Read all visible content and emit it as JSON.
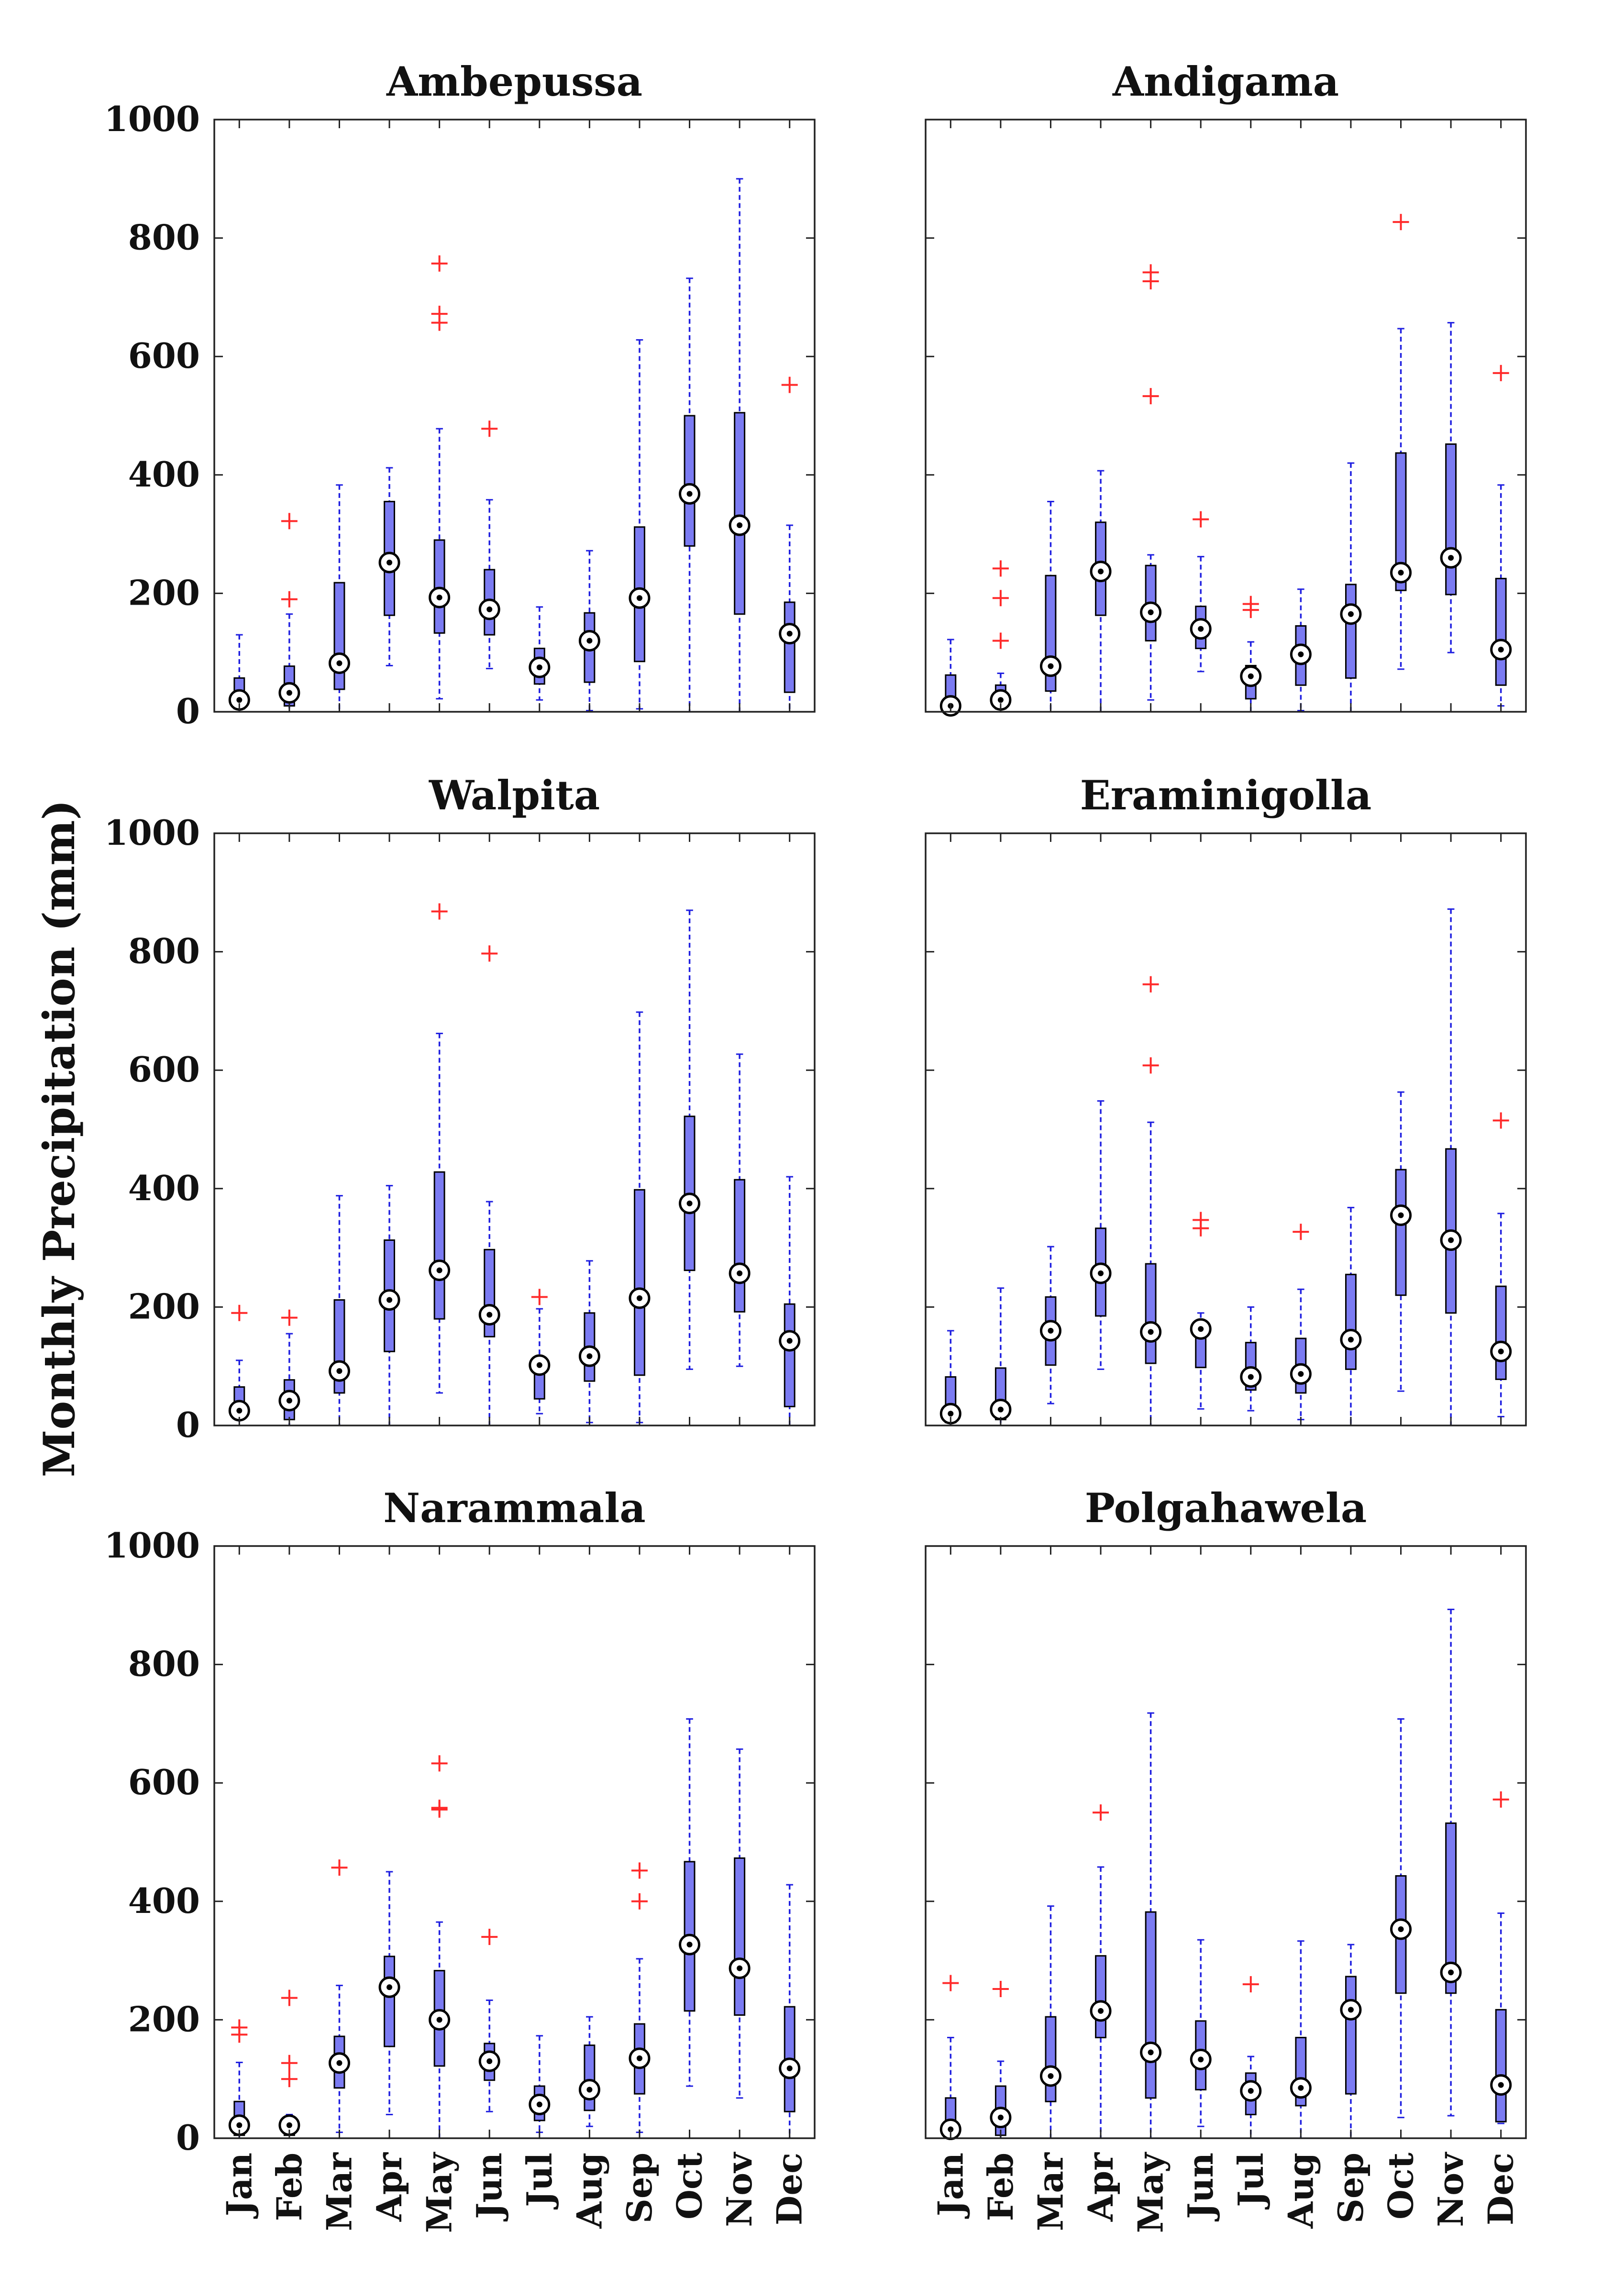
{
  "figure": {
    "ylabel": "Monthly Precipitation (mm)",
    "months": [
      "Jan",
      "Feb",
      "Mar",
      "Apr",
      "May",
      "Jun",
      "Jul",
      "Aug",
      "Sep",
      "Oct",
      "Nov",
      "Dec"
    ],
    "yticks": [
      "0",
      "200",
      "400",
      "600",
      "800",
      "1000"
    ]
  },
  "colors": {
    "box": "#7b7bf2",
    "box_edge": "#000000",
    "whisker": "#1f1fe0",
    "outlier": "#ff2a2a",
    "median_ring": "#000000"
  },
  "chart_data": [
    {
      "type": "box",
      "title": "Ambepussa",
      "categories": [
        "Jan",
        "Feb",
        "Mar",
        "Apr",
        "May",
        "Jun",
        "Jul",
        "Aug",
        "Sep",
        "Oct",
        "Nov",
        "Dec"
      ],
      "ylim": [
        0,
        1000
      ],
      "ylabel": "Monthly Precipitation (mm)",
      "boxes": [
        {
          "min": 0,
          "q1": 5,
          "median": 20,
          "q3": 57,
          "max": 130,
          "outliers": []
        },
        {
          "min": 0,
          "q1": 10,
          "median": 32,
          "q3": 77,
          "max": 165,
          "outliers": [
            190,
            322
          ]
        },
        {
          "min": 0,
          "q1": 38,
          "median": 82,
          "q3": 218,
          "max": 383,
          "outliers": []
        },
        {
          "min": 78,
          "q1": 163,
          "median": 252,
          "q3": 355,
          "max": 412,
          "outliers": []
        },
        {
          "min": 22,
          "q1": 133,
          "median": 193,
          "q3": 290,
          "max": 478,
          "outliers": [
            657,
            672,
            757
          ]
        },
        {
          "min": 73,
          "q1": 130,
          "median": 173,
          "q3": 240,
          "max": 358,
          "outliers": [
            478
          ]
        },
        {
          "min": 20,
          "q1": 47,
          "median": 75,
          "q3": 107,
          "max": 177,
          "outliers": []
        },
        {
          "min": 2,
          "q1": 50,
          "median": 120,
          "q3": 167,
          "max": 272,
          "outliers": []
        },
        {
          "min": 5,
          "q1": 85,
          "median": 192,
          "q3": 312,
          "max": 628,
          "outliers": []
        },
        {
          "min": 0,
          "q1": 280,
          "median": 368,
          "q3": 500,
          "max": 732,
          "outliers": []
        },
        {
          "min": 0,
          "q1": 165,
          "median": 315,
          "q3": 505,
          "max": 900,
          "outliers": []
        },
        {
          "min": 0,
          "q1": 33,
          "median": 132,
          "q3": 185,
          "max": 315,
          "outliers": [
            552
          ]
        }
      ]
    },
    {
      "type": "box",
      "title": "Andigama",
      "categories": [
        "Jan",
        "Feb",
        "Mar",
        "Apr",
        "May",
        "Jun",
        "Jul",
        "Aug",
        "Sep",
        "Oct",
        "Nov",
        "Dec"
      ],
      "ylim": [
        0,
        1000
      ],
      "boxes": [
        {
          "min": 0,
          "q1": 2,
          "median": 10,
          "q3": 62,
          "max": 122,
          "outliers": []
        },
        {
          "min": 0,
          "q1": 5,
          "median": 20,
          "q3": 45,
          "max": 65,
          "outliers": [
            120,
            192,
            242
          ]
        },
        {
          "min": 0,
          "q1": 35,
          "median": 77,
          "q3": 230,
          "max": 355,
          "outliers": []
        },
        {
          "min": 0,
          "q1": 163,
          "median": 237,
          "q3": 320,
          "max": 407,
          "outliers": []
        },
        {
          "min": 20,
          "q1": 120,
          "median": 168,
          "q3": 247,
          "max": 265,
          "outliers": [
            533,
            727,
            742
          ]
        },
        {
          "min": 68,
          "q1": 107,
          "median": 140,
          "q3": 178,
          "max": 262,
          "outliers": [
            325
          ]
        },
        {
          "min": 0,
          "q1": 22,
          "median": 60,
          "q3": 78,
          "max": 118,
          "outliers": [
            172,
            182
          ]
        },
        {
          "min": 2,
          "q1": 45,
          "median": 97,
          "q3": 145,
          "max": 207,
          "outliers": []
        },
        {
          "min": 0,
          "q1": 57,
          "median": 165,
          "q3": 215,
          "max": 420,
          "outliers": []
        },
        {
          "min": 72,
          "q1": 205,
          "median": 235,
          "q3": 437,
          "max": 647,
          "outliers": [
            827
          ]
        },
        {
          "min": 100,
          "q1": 198,
          "median": 260,
          "q3": 452,
          "max": 657,
          "outliers": []
        },
        {
          "min": 10,
          "q1": 45,
          "median": 105,
          "q3": 225,
          "max": 383,
          "outliers": [
            572
          ]
        }
      ]
    },
    {
      "type": "box",
      "title": "Walpita",
      "categories": [
        "Jan",
        "Feb",
        "Mar",
        "Apr",
        "May",
        "Jun",
        "Jul",
        "Aug",
        "Sep",
        "Oct",
        "Nov",
        "Dec"
      ],
      "ylim": [
        0,
        1000
      ],
      "boxes": [
        {
          "min": 0,
          "q1": 15,
          "median": 25,
          "q3": 65,
          "max": 110,
          "outliers": [
            190
          ]
        },
        {
          "min": 0,
          "q1": 10,
          "median": 42,
          "q3": 77,
          "max": 155,
          "outliers": [
            182
          ]
        },
        {
          "min": 0,
          "q1": 55,
          "median": 92,
          "q3": 212,
          "max": 388,
          "outliers": []
        },
        {
          "min": 0,
          "q1": 125,
          "median": 212,
          "q3": 313,
          "max": 405,
          "outliers": []
        },
        {
          "min": 55,
          "q1": 180,
          "median": 262,
          "q3": 428,
          "max": 662,
          "outliers": [
            868
          ]
        },
        {
          "min": 0,
          "q1": 150,
          "median": 187,
          "q3": 297,
          "max": 378,
          "outliers": [
            797
          ]
        },
        {
          "min": 20,
          "q1": 45,
          "median": 102,
          "q3": 110,
          "max": 197,
          "outliers": [
            217
          ]
        },
        {
          "min": 5,
          "q1": 75,
          "median": 117,
          "q3": 190,
          "max": 278,
          "outliers": []
        },
        {
          "min": 5,
          "q1": 85,
          "median": 215,
          "q3": 398,
          "max": 698,
          "outliers": []
        },
        {
          "min": 95,
          "q1": 262,
          "median": 375,
          "q3": 522,
          "max": 870,
          "outliers": []
        },
        {
          "min": 100,
          "q1": 192,
          "median": 257,
          "q3": 415,
          "max": 627,
          "outliers": []
        },
        {
          "min": 0,
          "q1": 32,
          "median": 143,
          "q3": 205,
          "max": 420,
          "outliers": []
        }
      ]
    },
    {
      "type": "box",
      "title": "Eraminigolla",
      "categories": [
        "Jan",
        "Feb",
        "Mar",
        "Apr",
        "May",
        "Jun",
        "Jul",
        "Aug",
        "Sep",
        "Oct",
        "Nov",
        "Dec"
      ],
      "ylim": [
        0,
        1000
      ],
      "boxes": [
        {
          "min": 0,
          "q1": 5,
          "median": 20,
          "q3": 82,
          "max": 160,
          "outliers": []
        },
        {
          "min": 0,
          "q1": 10,
          "median": 27,
          "q3": 97,
          "max": 232,
          "outliers": []
        },
        {
          "min": 37,
          "q1": 102,
          "median": 160,
          "q3": 217,
          "max": 302,
          "outliers": []
        },
        {
          "min": 95,
          "q1": 185,
          "median": 257,
          "q3": 333,
          "max": 548,
          "outliers": []
        },
        {
          "min": 0,
          "q1": 105,
          "median": 158,
          "q3": 273,
          "max": 512,
          "outliers": [
            608,
            745
          ]
        },
        {
          "min": 28,
          "q1": 98,
          "median": 163,
          "q3": 168,
          "max": 190,
          "outliers": [
            333,
            347
          ]
        },
        {
          "min": 25,
          "q1": 60,
          "median": 82,
          "q3": 140,
          "max": 200,
          "outliers": []
        },
        {
          "min": 10,
          "q1": 55,
          "median": 87,
          "q3": 147,
          "max": 230,
          "outliers": [
            327
          ]
        },
        {
          "min": 0,
          "q1": 95,
          "median": 145,
          "q3": 255,
          "max": 368,
          "outliers": []
        },
        {
          "min": 58,
          "q1": 220,
          "median": 355,
          "q3": 432,
          "max": 563,
          "outliers": []
        },
        {
          "min": 0,
          "q1": 190,
          "median": 313,
          "q3": 467,
          "max": 872,
          "outliers": []
        },
        {
          "min": 15,
          "q1": 78,
          "median": 125,
          "q3": 235,
          "max": 358,
          "outliers": [
            515
          ]
        }
      ]
    },
    {
      "type": "box",
      "title": "Narammala",
      "categories": [
        "Jan",
        "Feb",
        "Mar",
        "Apr",
        "May",
        "Jun",
        "Jul",
        "Aug",
        "Sep",
        "Oct",
        "Nov",
        "Dec"
      ],
      "ylim": [
        0,
        1000
      ],
      "boxes": [
        {
          "min": 0,
          "q1": 5,
          "median": 22,
          "q3": 62,
          "max": 128,
          "outliers": [
            175,
            187
          ]
        },
        {
          "min": 0,
          "q1": 5,
          "median": 22,
          "q3": 35,
          "max": 40,
          "outliers": [
            100,
            127,
            237
          ]
        },
        {
          "min": 10,
          "q1": 85,
          "median": 127,
          "q3": 172,
          "max": 258,
          "outliers": [
            457
          ]
        },
        {
          "min": 40,
          "q1": 155,
          "median": 255,
          "q3": 307,
          "max": 450,
          "outliers": []
        },
        {
          "min": 0,
          "q1": 122,
          "median": 200,
          "q3": 283,
          "max": 365,
          "outliers": [
            555,
            558,
            633
          ]
        },
        {
          "min": 45,
          "q1": 98,
          "median": 130,
          "q3": 160,
          "max": 233,
          "outliers": [
            340
          ]
        },
        {
          "min": 10,
          "q1": 30,
          "median": 57,
          "q3": 88,
          "max": 173,
          "outliers": []
        },
        {
          "min": 20,
          "q1": 47,
          "median": 82,
          "q3": 157,
          "max": 205,
          "outliers": []
        },
        {
          "min": 10,
          "q1": 75,
          "median": 135,
          "q3": 193,
          "max": 303,
          "outliers": [
            400,
            452
          ]
        },
        {
          "min": 88,
          "q1": 215,
          "median": 327,
          "q3": 467,
          "max": 708,
          "outliers": []
        },
        {
          "min": 68,
          "q1": 208,
          "median": 287,
          "q3": 473,
          "max": 657,
          "outliers": []
        },
        {
          "min": 0,
          "q1": 45,
          "median": 118,
          "q3": 222,
          "max": 428,
          "outliers": []
        }
      ]
    },
    {
      "type": "box",
      "title": "Polgahawela",
      "categories": [
        "Jan",
        "Feb",
        "Mar",
        "Apr",
        "May",
        "Jun",
        "Jul",
        "Aug",
        "Sep",
        "Oct",
        "Nov",
        "Dec"
      ],
      "ylim": [
        0,
        1000
      ],
      "boxes": [
        {
          "min": 0,
          "q1": 2,
          "median": 15,
          "q3": 68,
          "max": 170,
          "outliers": [
            262
          ]
        },
        {
          "min": 0,
          "q1": 5,
          "median": 35,
          "q3": 88,
          "max": 130,
          "outliers": [
            252
          ]
        },
        {
          "min": 0,
          "q1": 62,
          "median": 105,
          "q3": 205,
          "max": 392,
          "outliers": []
        },
        {
          "min": 0,
          "q1": 170,
          "median": 215,
          "q3": 308,
          "max": 458,
          "outliers": [
            550
          ]
        },
        {
          "min": 0,
          "q1": 68,
          "median": 145,
          "q3": 382,
          "max": 718,
          "outliers": []
        },
        {
          "min": 20,
          "q1": 82,
          "median": 133,
          "q3": 198,
          "max": 335,
          "outliers": []
        },
        {
          "min": 0,
          "q1": 40,
          "median": 80,
          "q3": 110,
          "max": 138,
          "outliers": [
            260
          ]
        },
        {
          "min": 0,
          "q1": 55,
          "median": 85,
          "q3": 170,
          "max": 333,
          "outliers": []
        },
        {
          "min": 0,
          "q1": 75,
          "median": 217,
          "q3": 273,
          "max": 327,
          "outliers": []
        },
        {
          "min": 35,
          "q1": 245,
          "median": 353,
          "q3": 443,
          "max": 708,
          "outliers": []
        },
        {
          "min": 38,
          "q1": 245,
          "median": 280,
          "q3": 532,
          "max": 893,
          "outliers": []
        },
        {
          "min": 25,
          "q1": 28,
          "median": 90,
          "q3": 217,
          "max": 380,
          "outliers": [
            572
          ]
        }
      ]
    }
  ]
}
